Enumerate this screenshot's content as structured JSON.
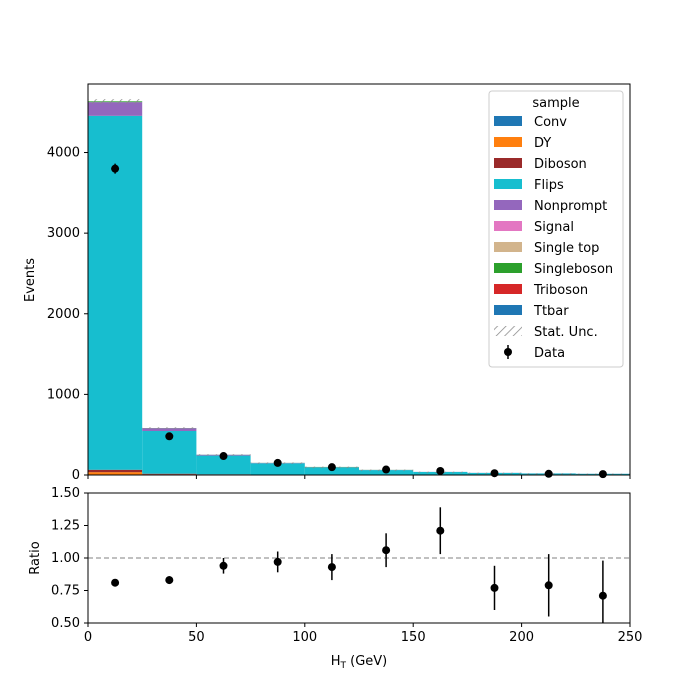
{
  "chart_data": {
    "type": "bar",
    "stacked": true,
    "xlabel": "H_T (GeV)",
    "xlim": [
      0,
      250
    ],
    "x_ticks": [
      0,
      50,
      100,
      150,
      200,
      250
    ],
    "bin_edges": [
      0,
      25,
      50,
      75,
      100,
      125,
      150,
      175,
      200,
      225,
      250
    ],
    "main": {
      "ylabel": "Events",
      "ylim": [
        0,
        4850
      ],
      "y_ticks": [
        0,
        1000,
        2000,
        3000,
        4000
      ],
      "series": [
        {
          "name": "Conv",
          "color": "#1f77b4",
          "values": [
            5,
            2,
            1,
            1,
            1,
            0,
            0,
            0,
            0,
            0
          ]
        },
        {
          "name": "DY",
          "color": "#ff7f0e",
          "values": [
            30,
            6,
            3,
            2,
            1,
            1,
            1,
            0,
            0,
            0
          ]
        },
        {
          "name": "Diboson",
          "color": "#9a2a2a",
          "values": [
            30,
            8,
            5,
            3,
            2,
            2,
            1,
            1,
            1,
            1
          ]
        },
        {
          "name": "Flips",
          "color": "#17becf",
          "values": [
            4390,
            530,
            232,
            140,
            90,
            58,
            36,
            25,
            18,
            14
          ]
        },
        {
          "name": "Nonprompt",
          "color": "#9467bd",
          "values": [
            170,
            35,
            10,
            4,
            3,
            2,
            1,
            1,
            1,
            1
          ]
        },
        {
          "name": "Signal",
          "color": "#e377c2",
          "values": [
            0,
            0,
            0,
            0,
            0,
            0,
            0,
            0,
            0,
            0
          ]
        },
        {
          "name": "Single top",
          "color": "#d2b48c",
          "values": [
            0,
            0,
            0,
            0,
            0,
            0,
            0,
            0,
            0,
            0
          ]
        },
        {
          "name": "Singleboson",
          "color": "#2ca02c",
          "values": [
            10,
            2,
            1,
            1,
            3,
            1,
            0,
            0,
            0,
            0
          ]
        },
        {
          "name": "Triboson",
          "color": "#d62728",
          "values": [
            0,
            0,
            0,
            0,
            0,
            0,
            0,
            0,
            0,
            0
          ]
        },
        {
          "name": "Ttbar",
          "color": "#1f77b4",
          "values": [
            0,
            0,
            0,
            0,
            0,
            0,
            0,
            0,
            0,
            0
          ]
        }
      ],
      "stat_unc_label": "Stat. Unc.",
      "data": {
        "name": "Data",
        "x": [
          12.5,
          37.5,
          62.5,
          87.5,
          112.5,
          137.5,
          162.5,
          187.5,
          212.5,
          237.5
        ],
        "y": [
          3800,
          480,
          235,
          150,
          97,
          68,
          50,
          22,
          15,
          11
        ],
        "yerr": [
          62,
          22,
          15,
          12,
          10,
          8,
          7,
          5,
          4,
          3
        ]
      },
      "legend": {
        "title": "sample",
        "position": "upper right"
      }
    },
    "ratio": {
      "ylabel": "Ratio",
      "ylim": [
        0.5,
        1.5
      ],
      "y_ticks": [
        "0.50",
        "0.75",
        "1.00",
        "1.25",
        "1.50"
      ],
      "reference_line": 1.0,
      "x": [
        12.5,
        37.5,
        62.5,
        87.5,
        112.5,
        137.5,
        162.5,
        187.5,
        212.5,
        237.5
      ],
      "values": [
        0.81,
        0.83,
        0.94,
        0.97,
        0.93,
        1.06,
        1.21,
        0.77,
        0.79,
        0.71
      ],
      "errors": [
        0.01,
        0.03,
        0.06,
        0.08,
        0.1,
        0.13,
        0.18,
        0.17,
        0.24,
        0.27
      ]
    }
  }
}
